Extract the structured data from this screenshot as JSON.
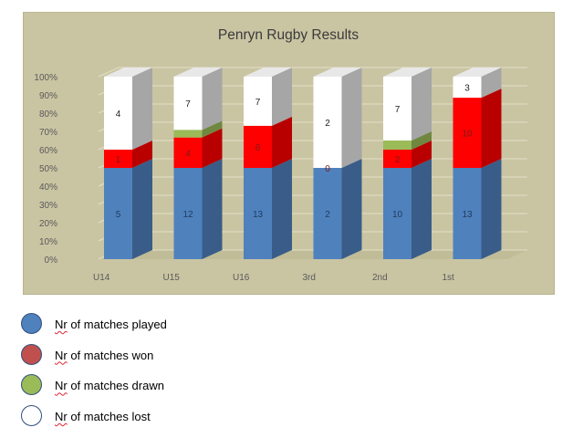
{
  "colors": {
    "played": "#4f81bd",
    "won": "#ff0000",
    "drawn": "#9bbb59",
    "lost": "#ffffff",
    "plot_background": "#c9c4a2"
  },
  "chart_data": {
    "type": "bar",
    "stacked": "100%",
    "three_d": true,
    "title": "Penryn Rugby Results",
    "xlabel": "",
    "ylabel": "",
    "ylim": [
      0,
      100
    ],
    "y_tick_labels": [
      "0%",
      "10%",
      "20%",
      "30%",
      "40%",
      "50%",
      "60%",
      "70%",
      "80%",
      "90%",
      "100%"
    ],
    "grid": true,
    "categories": [
      "U14",
      "U15",
      "U16",
      "3rd",
      "2nd",
      "1st"
    ],
    "series": [
      {
        "name": "Nr of matches played",
        "values": [
          5,
          12,
          13,
          2,
          10,
          13
        ]
      },
      {
        "name": "Nr of matches won",
        "values": [
          1,
          4,
          6,
          0,
          2,
          10
        ]
      },
      {
        "name": "Nr of matches drawn",
        "values": [
          0,
          1,
          0,
          0,
          1,
          0
        ]
      },
      {
        "name": "Nr of matches lost",
        "values": [
          4,
          7,
          7,
          2,
          7,
          3
        ]
      }
    ],
    "data_labels": [
      [
        "5",
        "12",
        "13",
        "2",
        "10",
        "13"
      ],
      [
        "1",
        "4",
        "6",
        "0",
        "2",
        "10"
      ],
      [
        "",
        "",
        "",
        "",
        "",
        ""
      ],
      [
        "4",
        "7",
        "7",
        "2",
        "7",
        "3"
      ]
    ]
  },
  "legend": [
    {
      "first_word": "Nr",
      "rest": " of matches played",
      "color": "#4f81bd"
    },
    {
      "first_word": "Nr",
      "rest": " of matches won",
      "color": "#c0504d"
    },
    {
      "first_word": "Nr",
      "rest": " of matches drawn",
      "color": "#9bbb59"
    },
    {
      "first_word": "Nr",
      "rest": " of matches lost",
      "color": "#ffffff"
    }
  ]
}
